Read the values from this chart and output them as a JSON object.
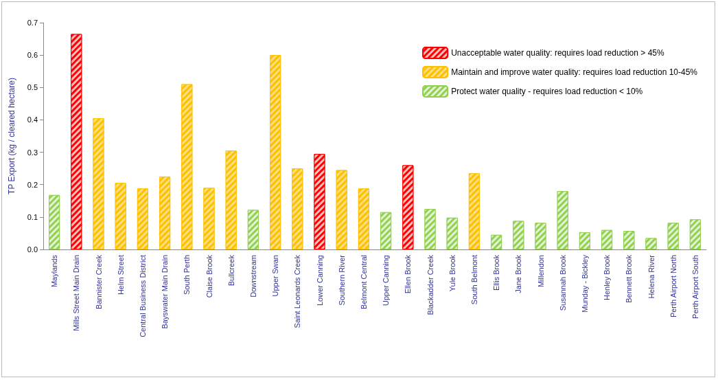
{
  "chart_data": {
    "type": "bar",
    "ylabel": "TP Export (kg / cleared hectare)",
    "categories": [
      "Maylands",
      "Mills Street Main Drain",
      "Bannister Creek",
      "Helm Street",
      "Central Business District",
      "Bayswater Main Drain",
      "South Perth",
      "Claise Brook",
      "Bullcreek",
      "Downstream",
      "Upper Swan",
      "Saint Leonards Creek",
      "Lower Canning",
      "Southern River",
      "Belmont Central",
      "Upper Canning",
      "Ellen Brook",
      "Blackadder Creek",
      "Yule Brook",
      "South Belmont",
      "Ellis Brook",
      "Jane Brook",
      "Millendon",
      "Susannah Brook",
      "Munday - Bickley",
      "Henley Brook",
      "Bennett Brook",
      "Helena River",
      "Perth Airport North",
      "Perth Airport South"
    ],
    "stacked": true,
    "series": [
      {
        "name": "Unacceptable water quality: requires load reduction > 45%",
        "color": "#ff0000",
        "values": [
          null,
          0.665,
          null,
          null,
          null,
          null,
          null,
          null,
          null,
          null,
          null,
          null,
          0.295,
          null,
          null,
          null,
          0.26,
          null,
          null,
          null,
          null,
          null,
          null,
          null,
          null,
          null,
          null,
          null,
          null,
          null
        ]
      },
      {
        "name": "Maintain and improve water quality: requires load reduction 10-45%",
        "color": "#ffc000",
        "values": [
          null,
          null,
          0.405,
          0.205,
          0.188,
          0.225,
          0.51,
          0.19,
          0.305,
          null,
          0.6,
          0.25,
          null,
          0.245,
          0.188,
          null,
          null,
          null,
          null,
          0.235,
          null,
          null,
          null,
          null,
          null,
          null,
          null,
          null,
          null,
          null
        ]
      },
      {
        "name": "Protect water quality - requires load reduction < 10%",
        "color": "#92d050",
        "values": [
          0.168,
          null,
          null,
          null,
          null,
          null,
          null,
          null,
          null,
          0.122,
          null,
          null,
          null,
          null,
          null,
          0.115,
          null,
          0.125,
          0.098,
          null,
          0.045,
          0.088,
          0.082,
          0.18,
          0.053,
          0.06,
          0.057,
          0.035,
          0.082,
          0.093
        ]
      }
    ],
    "ylim": [
      0,
      0.7
    ],
    "yticks": [
      {
        "value": 0,
        "label": "0.0"
      },
      {
        "value": 0.1,
        "label": "0.1"
      },
      {
        "value": 0.2,
        "label": "0.2"
      },
      {
        "value": 0.3,
        "label": "0.3"
      },
      {
        "value": 0.4,
        "label": "0.4"
      },
      {
        "value": 0.5,
        "label": "0.5"
      },
      {
        "value": 0.6,
        "label": "0.6"
      },
      {
        "value": 0.7,
        "label": "0.7"
      }
    ],
    "grid": false,
    "legend": "top right"
  }
}
